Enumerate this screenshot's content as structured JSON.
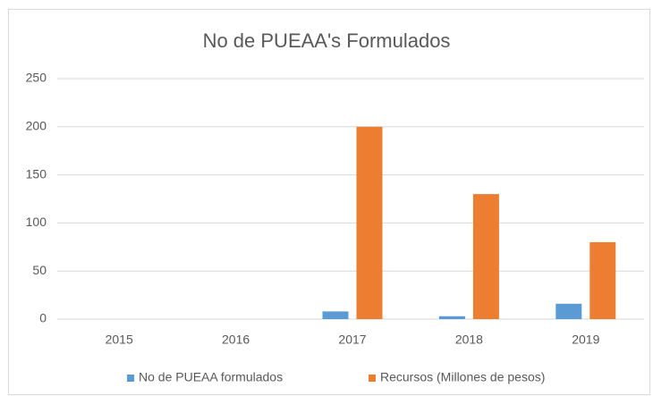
{
  "chart_data": {
    "type": "bar",
    "title": "No de PUEAA's Formulados",
    "categories": [
      "2015",
      "2016",
      "2017",
      "2018",
      "2019"
    ],
    "series": [
      {
        "name": "No de PUEAA formulados",
        "color": "#5b9bd5",
        "values": [
          0,
          0,
          8,
          3,
          16
        ]
      },
      {
        "name": "Recursos (Millones de pesos)",
        "color": "#ed7d31",
        "values": [
          0,
          0,
          200,
          130,
          80
        ]
      }
    ],
    "ylim": [
      0,
      250
    ],
    "yticks": [
      0,
      50,
      100,
      150,
      200,
      250
    ],
    "grid": true,
    "legend": "bottom"
  }
}
